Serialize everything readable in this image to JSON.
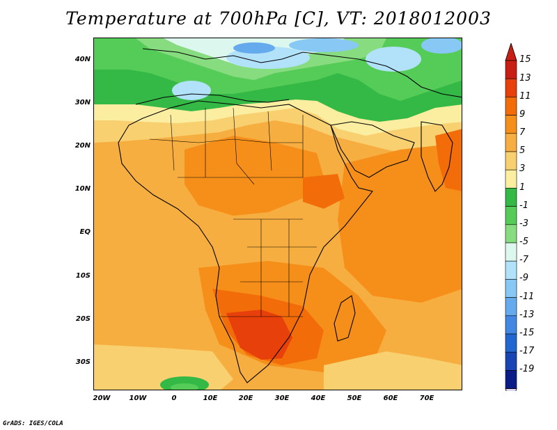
{
  "title": "Temperature at 700hPa [C], VT: 2018012003",
  "credit": "GrADS: IGES/COLA",
  "lat_labels": [
    "40N",
    "30N",
    "20N",
    "10N",
    "EQ",
    "10S",
    "20S",
    "30S"
  ],
  "lon_labels": [
    "20W",
    "10W",
    "0",
    "10E",
    "20E",
    "30E",
    "40E",
    "50E",
    "60E",
    "70E"
  ],
  "colorbar": {
    "labels": [
      "15",
      "13",
      "11",
      "9",
      "7",
      "5",
      "3",
      "1",
      "-1",
      "-3",
      "-5",
      "-7",
      "-9",
      "-11",
      "-13",
      "-15",
      "-17",
      "-19"
    ],
    "colors": [
      "#c81e14",
      "#e8400a",
      "#f26c0a",
      "#f58f1a",
      "#f7ae40",
      "#f9d070",
      "#fbeea0",
      "#34b846",
      "#56cc58",
      "#88dc80",
      "#dcf8ee",
      "#b2e2fa",
      "#88c8f4",
      "#64aaec",
      "#4288e2",
      "#2266d2",
      "#1844b4",
      "#0c1c86"
    ],
    "over_color": "#c81e14",
    "under_color": "#dcd8f2"
  },
  "map": {
    "extent": {
      "lon": [
        -22,
        80
      ],
      "lat": [
        -37,
        45
      ]
    },
    "field": "air temperature at 700 hPa",
    "units": "C"
  }
}
